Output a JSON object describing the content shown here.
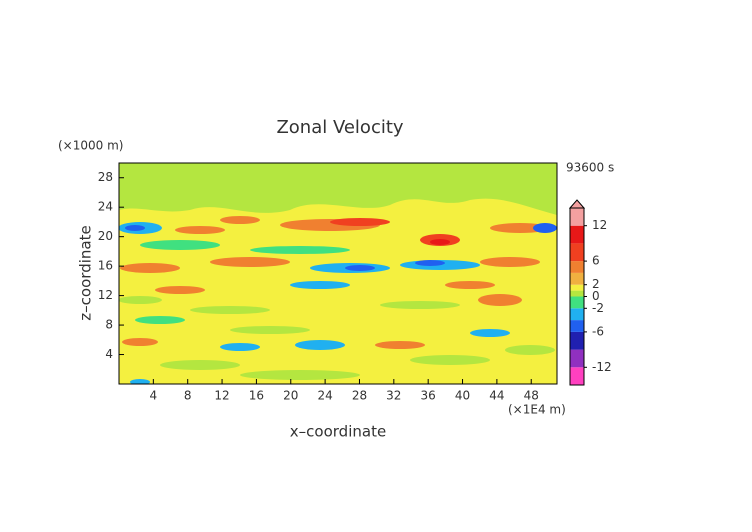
{
  "chart_data": {
    "type": "heatmap",
    "title": "Zonal Velocity",
    "x_label": "x–coordinate",
    "y_label": "z–coordinate",
    "x_unit": "(×1E4 m)",
    "y_unit": "(×1000 m)",
    "time_label": "93600 s",
    "xlim": [
      0,
      51
    ],
    "xticks": [
      4,
      8,
      12,
      16,
      20,
      24,
      28,
      32,
      36,
      40,
      44,
      48
    ],
    "ylim": [
      0,
      30
    ],
    "yticks": [
      4,
      8,
      12,
      16,
      20,
      24,
      28
    ],
    "colorbar": {
      "lim": [
        -15,
        15
      ],
      "ticks": [
        12,
        6,
        2,
        0,
        -2,
        -6,
        -12
      ],
      "bounds": [
        -15,
        -12,
        -9,
        -6,
        -4,
        -2,
        0,
        1,
        2,
        4,
        6,
        9,
        12,
        15
      ],
      "colors": [
        "#ff40c0",
        "#9030c0",
        "#2020b0",
        "#2060f0",
        "#20b0f0",
        "#40e080",
        "#b4e640",
        "#f4f040",
        "#f0b040",
        "#f08030",
        "#f04020",
        "#e81818",
        "#f4a0a0"
      ]
    }
  }
}
